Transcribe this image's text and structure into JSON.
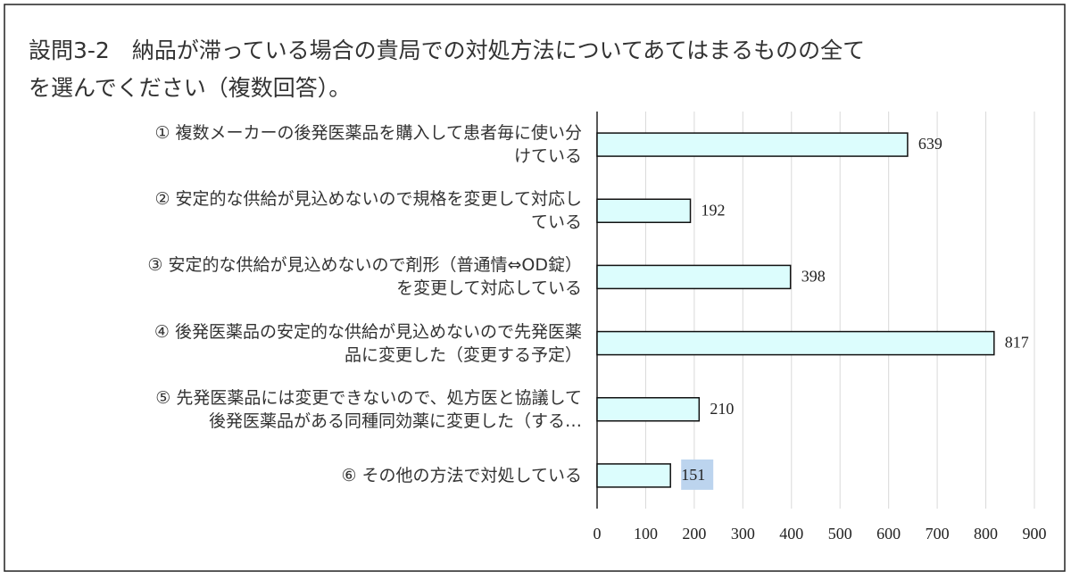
{
  "chart_data": {
    "type": "barh",
    "title": "設問3-2　納品が滞っている場合の貴局での対処方法についてあてはまるものの全てを選んでください（複数回答）。",
    "categories": [
      "① 複数メーカーの後発医薬品を購入して患者毎に使い分けている",
      "② 安定的な供給が見込めないので規格を変更して対応している",
      "③ 安定的な供給が見込めないので剤形（普通情⇔OD錠）を変更して対応している",
      "④ 後発医薬品の安定的な供給が見込めないので先発医薬品に変更した（変更する予定）",
      "⑤ 先発医薬品には変更できないので、処方医と協議して後発医薬品がある同種同効薬に変更した（する…",
      "⑥ その他の方法で対処している"
    ],
    "values": [
      639,
      192,
      398,
      817,
      210,
      151
    ],
    "color": "#dcfdfd",
    "xlim": [
      0,
      900
    ],
    "xticks": [
      0,
      100,
      200,
      300,
      400,
      500,
      600,
      700,
      800,
      900
    ],
    "grid": true
  }
}
